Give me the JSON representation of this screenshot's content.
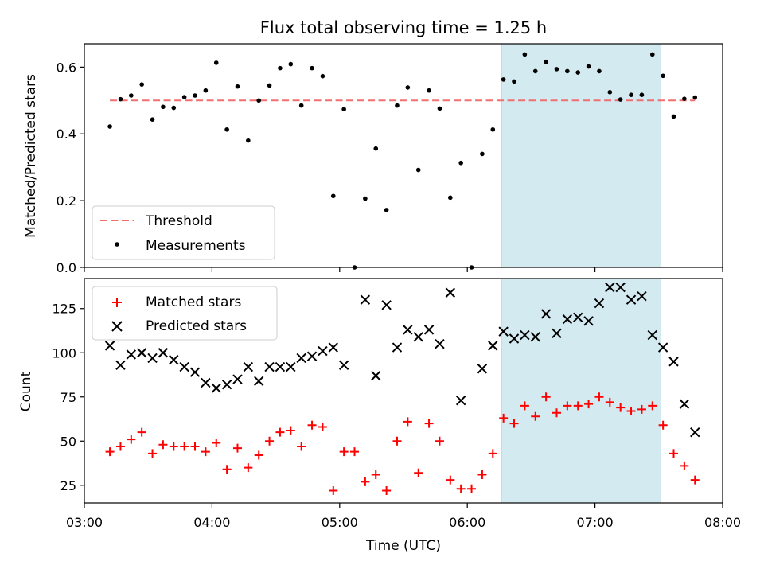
{
  "chart_data": [
    {
      "type": "scatter",
      "title": "Flux total observing time = 1.25 h",
      "ylabel": "Matched/Predicted stars",
      "xlim": [
        "03:00",
        "08:00"
      ],
      "ylim": [
        0,
        0.67
      ],
      "yticks": [
        "0.0",
        "0.2",
        "0.4",
        "0.6"
      ],
      "ytick_values": [
        0,
        0.2,
        0.4,
        0.6
      ],
      "grid": false,
      "legend_position": "lower-left",
      "highlight_span": {
        "start": "06:16",
        "end": "07:31",
        "color": "#d3eaf0"
      },
      "threshold": {
        "name": "Threshold",
        "value": 0.5,
        "x_start": "03:12",
        "x_end": "07:47",
        "color": "#f07070"
      },
      "series": [
        {
          "name": "Measurements",
          "color": "#000000",
          "x": [
            "03:12",
            "03:17",
            "03:22",
            "03:27",
            "03:32",
            "03:37",
            "03:42",
            "03:47",
            "03:52",
            "03:57",
            "04:02",
            "04:07",
            "04:12",
            "04:17",
            "04:22",
            "04:27",
            "04:32",
            "04:37",
            "04:42",
            "04:47",
            "04:52",
            "04:57",
            "05:02",
            "05:07",
            "05:12",
            "05:17",
            "05:22",
            "05:27",
            "05:32",
            "05:37",
            "05:42",
            "05:47",
            "05:52",
            "05:57",
            "06:02",
            "06:07",
            "06:12",
            "06:17",
            "06:22",
            "06:27",
            "06:32",
            "06:37",
            "06:42",
            "06:47",
            "06:52",
            "06:57",
            "07:02",
            "07:07",
            "07:12",
            "07:17",
            "07:22",
            "07:27",
            "07:32",
            "07:37",
            "07:42",
            "07:47"
          ],
          "y": [
            0.422,
            0.504,
            0.515,
            0.548,
            0.443,
            0.481,
            0.478,
            0.51,
            0.515,
            0.53,
            0.613,
            0.413,
            0.542,
            0.38,
            0.5,
            0.545,
            0.597,
            0.609,
            0.485,
            0.597,
            0.573,
            0.214,
            0.474,
            0.0,
            0.206,
            0.356,
            0.172,
            0.485,
            0.539,
            0.292,
            0.53,
            0.476,
            0.209,
            0.313,
            0.0,
            0.34,
            0.413,
            0.563,
            0.557,
            0.638,
            0.588,
            0.616,
            0.594,
            0.588,
            0.584,
            0.602,
            0.588,
            0.525,
            0.503,
            0.517,
            0.517,
            0.638,
            0.574,
            0.452,
            0.505,
            0.509
          ]
        }
      ]
    },
    {
      "type": "scatter",
      "title": "",
      "xlabel": "Time (UTC)",
      "ylabel": "Count",
      "xlim": [
        "03:00",
        "08:00"
      ],
      "xticks": [
        "03:00",
        "04:00",
        "05:00",
        "06:00",
        "07:00",
        "08:00"
      ],
      "ylim": [
        15,
        142
      ],
      "yticks": [
        "25",
        "50",
        "75",
        "100",
        "125"
      ],
      "ytick_values": [
        25,
        50,
        75,
        100,
        125
      ],
      "grid": false,
      "legend_position": "upper-left",
      "highlight_span": {
        "start": "06:16",
        "end": "07:31",
        "color": "#d3eaf0"
      },
      "series": [
        {
          "name": "Matched stars",
          "marker": "plus",
          "color": "#ff0000",
          "x": [
            "03:12",
            "03:17",
            "03:22",
            "03:27",
            "03:32",
            "03:37",
            "03:42",
            "03:47",
            "03:52",
            "03:57",
            "04:02",
            "04:07",
            "04:12",
            "04:17",
            "04:22",
            "04:27",
            "04:32",
            "04:37",
            "04:42",
            "04:47",
            "04:52",
            "04:57",
            "05:02",
            "05:07",
            "05:12",
            "05:17",
            "05:22",
            "05:27",
            "05:32",
            "05:37",
            "05:42",
            "05:47",
            "05:52",
            "05:57",
            "06:02",
            "06:07",
            "06:12",
            "06:17",
            "06:22",
            "06:27",
            "06:32",
            "06:37",
            "06:42",
            "06:47",
            "06:52",
            "06:57",
            "07:02",
            "07:07",
            "07:12",
            "07:17",
            "07:22",
            "07:27",
            "07:32",
            "07:37",
            "07:42",
            "07:47"
          ],
          "y": [
            44,
            47,
            51,
            55,
            43,
            48,
            47,
            47,
            47,
            44,
            49,
            34,
            46,
            35,
            42,
            50,
            55,
            56,
            47,
            59,
            58,
            22,
            44,
            44,
            27,
            31,
            22,
            50,
            61,
            32,
            60,
            50,
            28,
            23,
            23,
            31,
            43,
            63,
            60,
            70,
            64,
            75,
            66,
            70,
            70,
            71,
            75,
            72,
            69,
            67,
            68,
            70,
            59,
            43,
            36,
            28
          ]
        },
        {
          "name": "Predicted stars",
          "marker": "x",
          "color": "#000000",
          "x": [
            "03:12",
            "03:17",
            "03:22",
            "03:27",
            "03:32",
            "03:37",
            "03:42",
            "03:47",
            "03:52",
            "03:57",
            "04:02",
            "04:07",
            "04:12",
            "04:17",
            "04:22",
            "04:27",
            "04:32",
            "04:37",
            "04:42",
            "04:47",
            "04:52",
            "04:57",
            "05:02",
            "05:12",
            "05:17",
            "05:22",
            "05:27",
            "05:32",
            "05:37",
            "05:42",
            "05:47",
            "05:52",
            "05:57",
            "06:07",
            "06:12",
            "06:17",
            "06:22",
            "06:27",
            "06:32",
            "06:37",
            "06:42",
            "06:47",
            "06:52",
            "06:57",
            "07:02",
            "07:07",
            "07:12",
            "07:17",
            "07:22",
            "07:27",
            "07:32",
            "07:37",
            "07:42",
            "07:47"
          ],
          "y": [
            104,
            93,
            99,
            100,
            97,
            100,
            96,
            92,
            89,
            83,
            80,
            82,
            85,
            92,
            84,
            92,
            92,
            92,
            97,
            98,
            101,
            103,
            93,
            130,
            87,
            127,
            103,
            113,
            109,
            113,
            105,
            134,
            73,
            91,
            104,
            112,
            108,
            110,
            109,
            122,
            111,
            119,
            120,
            118,
            128,
            137,
            137,
            130,
            132,
            110,
            103,
            95,
            71,
            55
          ]
        }
      ]
    }
  ]
}
